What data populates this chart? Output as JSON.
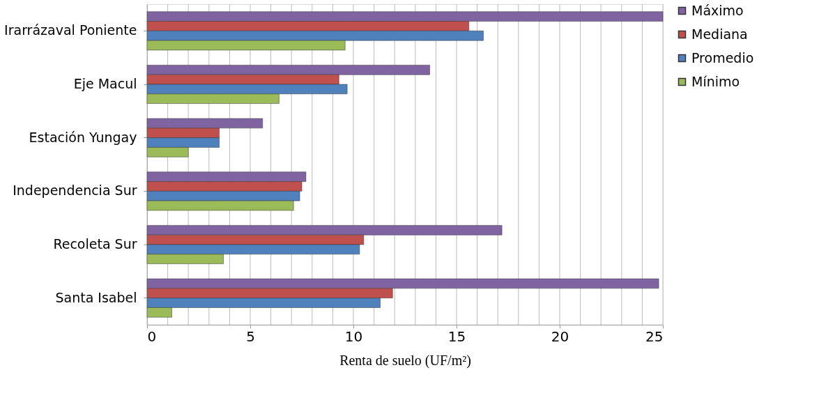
{
  "chart_data": {
    "type": "bar",
    "orientation": "horizontal",
    "categories": [
      "Irarrázaval Poniente",
      "Eje Macul",
      "Estación Yungay",
      "Independencia Sur",
      "Recoleta Sur",
      "Santa Isabel"
    ],
    "series": [
      {
        "name": "Máximo",
        "color": "#8064a2",
        "values": [
          25.0,
          13.7,
          5.6,
          7.7,
          17.2,
          24.8
        ]
      },
      {
        "name": "Mediana",
        "color": "#c0504d",
        "values": [
          15.6,
          9.3,
          3.5,
          7.5,
          10.5,
          11.9
        ]
      },
      {
        "name": "Promedio",
        "color": "#4f81bd",
        "values": [
          16.3,
          9.7,
          3.5,
          7.4,
          10.3,
          11.3
        ]
      },
      {
        "name": "Mínimo",
        "color": "#9bbb59",
        "values": [
          9.6,
          6.4,
          2.0,
          7.1,
          3.7,
          1.2
        ]
      }
    ],
    "xlabel": "Renta de suelo (UF/m²)",
    "xlim": [
      0,
      25
    ],
    "xticks": [
      0,
      5,
      10,
      15,
      20,
      25
    ],
    "grid": "x",
    "legend": "right"
  }
}
